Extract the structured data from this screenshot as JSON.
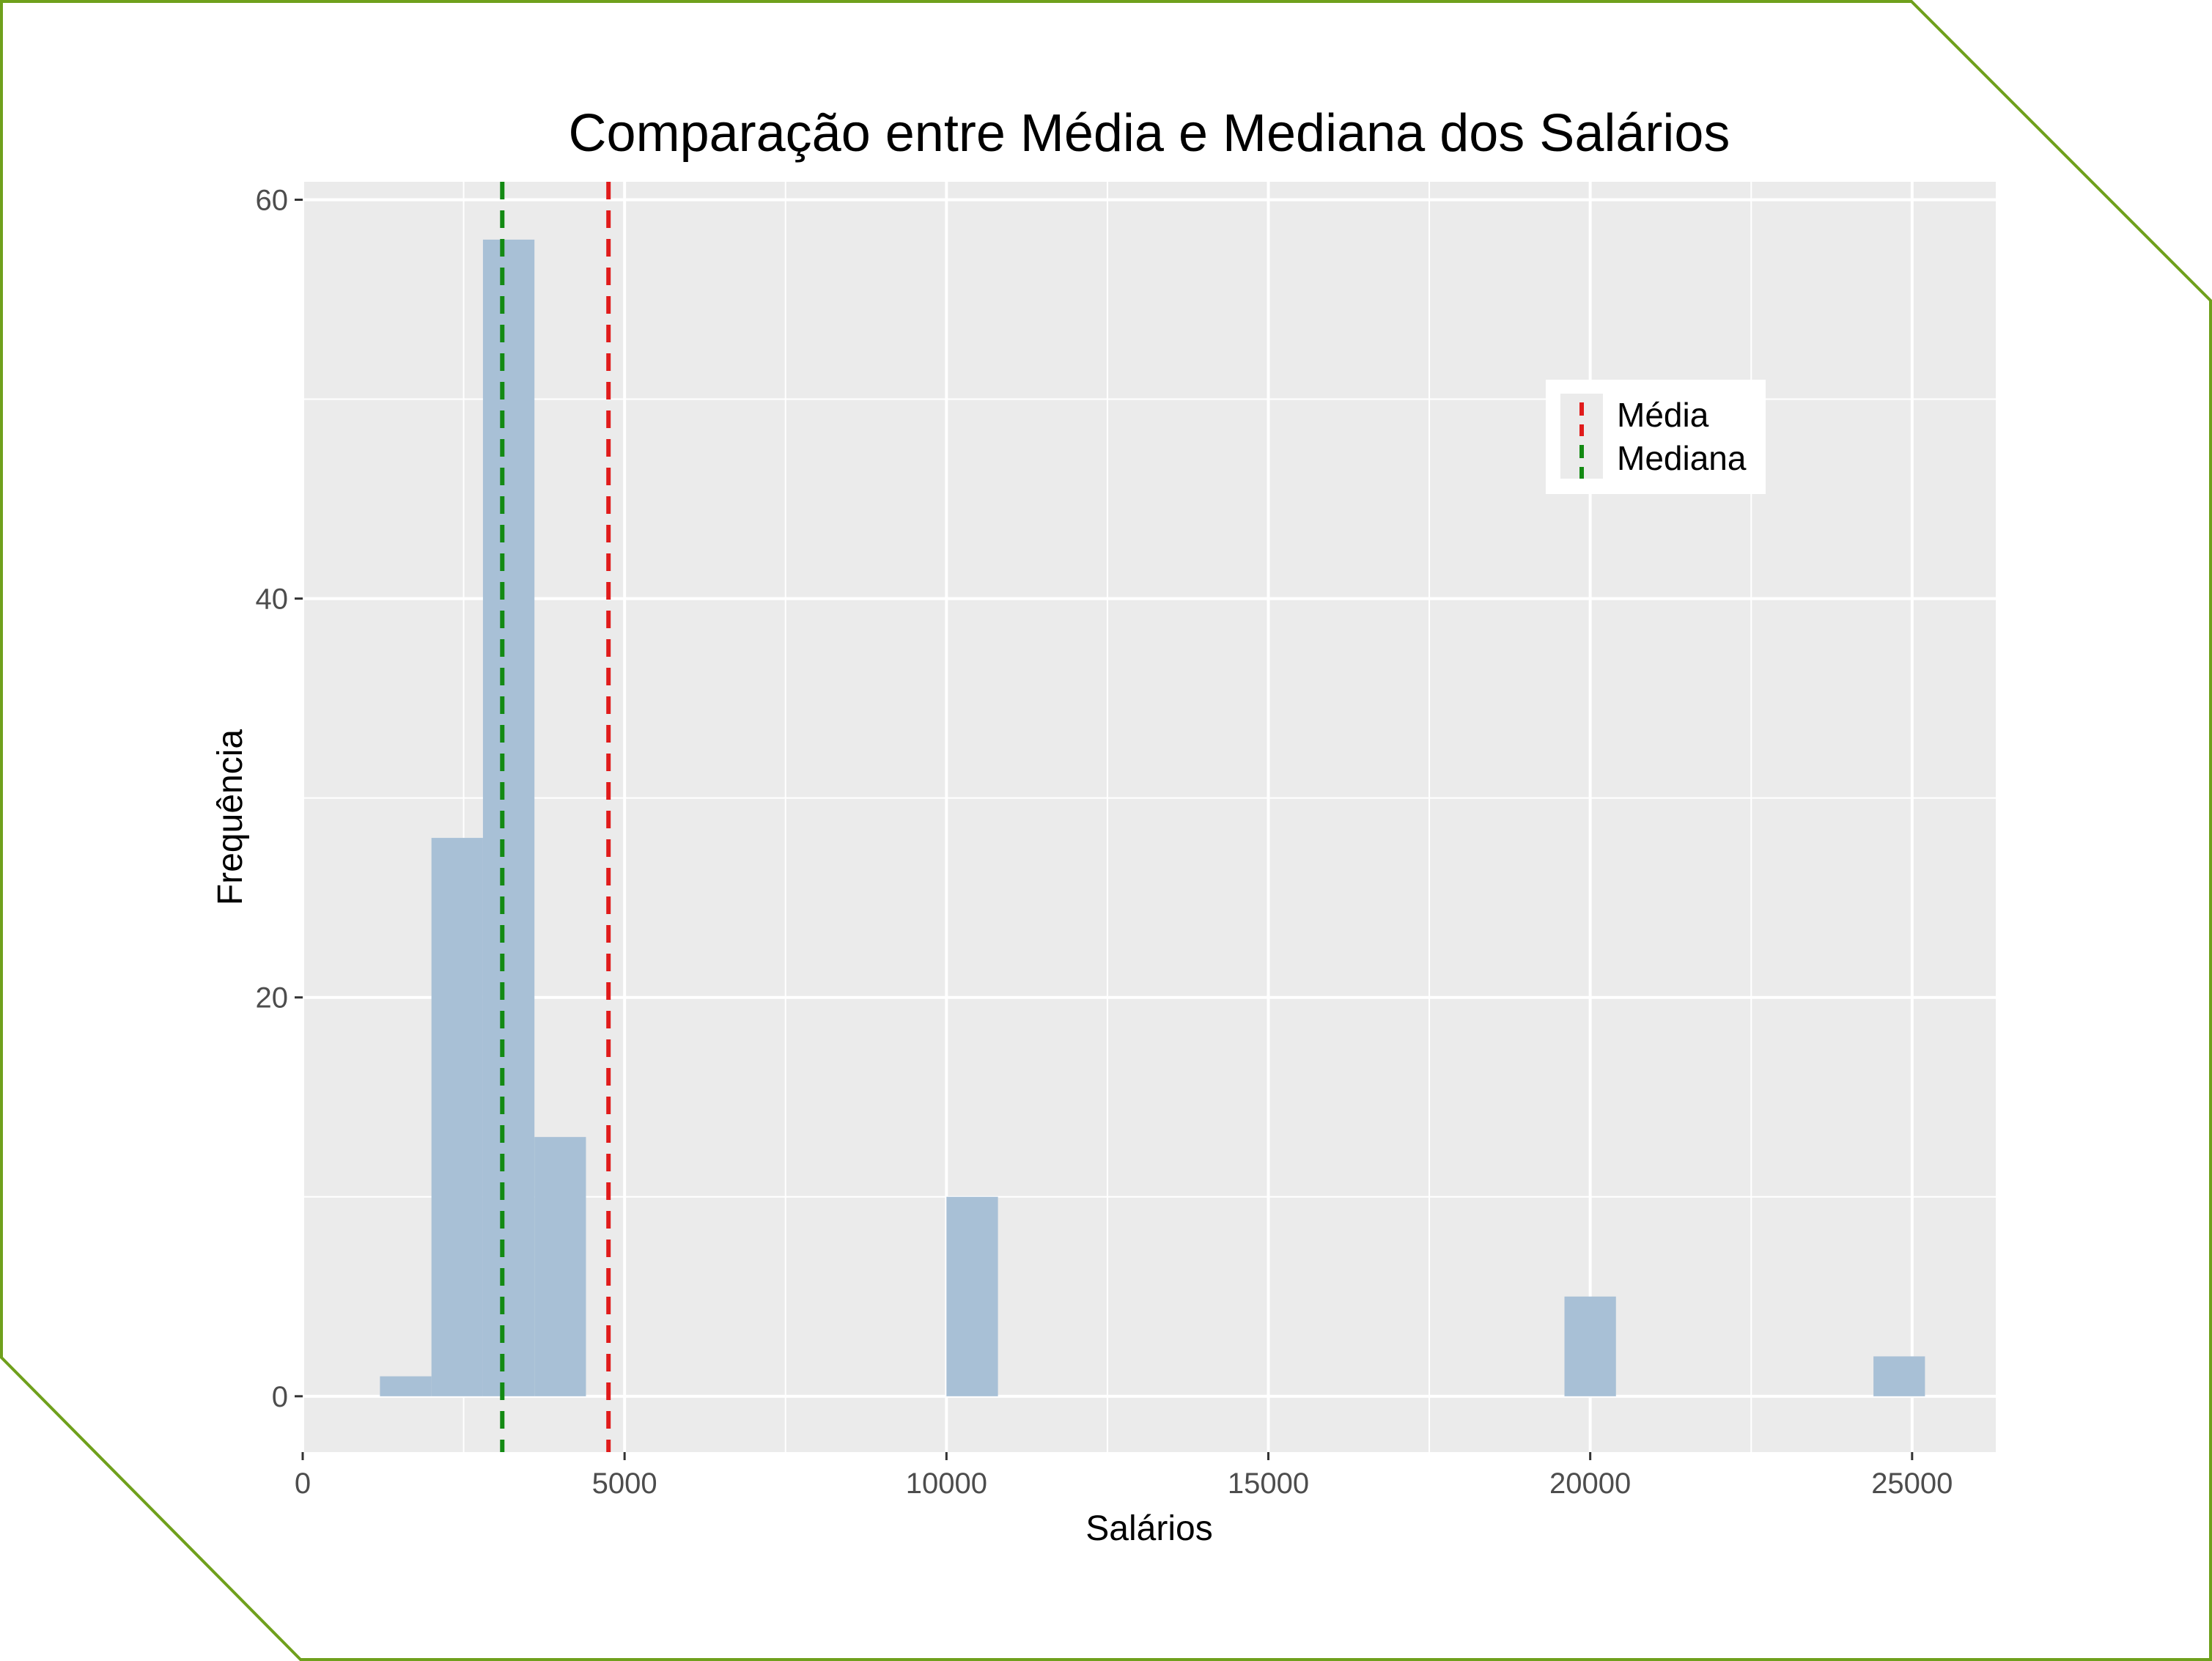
{
  "colors": {
    "frame": "#6fa01c",
    "panel_bg": "#ebebeb",
    "grid": "#ffffff",
    "bar_fill": "#a8c0d6",
    "mean_line": "#e01b1b",
    "median_line": "#138a13",
    "text": "#000000",
    "tick_text": "#4d4d4d"
  },
  "chart_data": {
    "type": "bar",
    "subtype": "histogram",
    "title": "Comparação entre Média e Mediana dos Salários",
    "xlabel": "Salários",
    "ylabel": "Frequência",
    "xlim": [
      0,
      26300
    ],
    "ylim": [
      -2.8,
      60.9
    ],
    "x_ticks": [
      0,
      5000,
      10000,
      15000,
      20000,
      25000
    ],
    "x_tick_labels": [
      "0",
      "5000",
      "10000",
      "15000",
      "20000",
      "25000"
    ],
    "y_ticks": [
      0,
      20,
      40,
      60
    ],
    "y_tick_labels": [
      "0",
      "20",
      "40",
      "60"
    ],
    "grid": true,
    "bin_width": 800,
    "bins": [
      {
        "start": 1200,
        "end": 2000,
        "count": 1
      },
      {
        "start": 2000,
        "end": 2800,
        "count": 28
      },
      {
        "start": 2800,
        "end": 3600,
        "count": 58
      },
      {
        "start": 3600,
        "end": 4400,
        "count": 13
      },
      {
        "start": 10000,
        "end": 10800,
        "count": 10
      },
      {
        "start": 19600,
        "end": 20400,
        "count": 5
      },
      {
        "start": 24400,
        "end": 25200,
        "count": 2
      }
    ],
    "reference_lines": [
      {
        "name": "Média",
        "x": 4750,
        "color": "#e01b1b",
        "style": "dashed"
      },
      {
        "name": "Mediana",
        "x": 3100,
        "color": "#138a13",
        "style": "dashed"
      }
    ],
    "legend": {
      "position": "top-right",
      "entries": [
        {
          "label": "Média",
          "color": "#e01b1b"
        },
        {
          "label": "Mediana",
          "color": "#138a13"
        }
      ]
    }
  }
}
